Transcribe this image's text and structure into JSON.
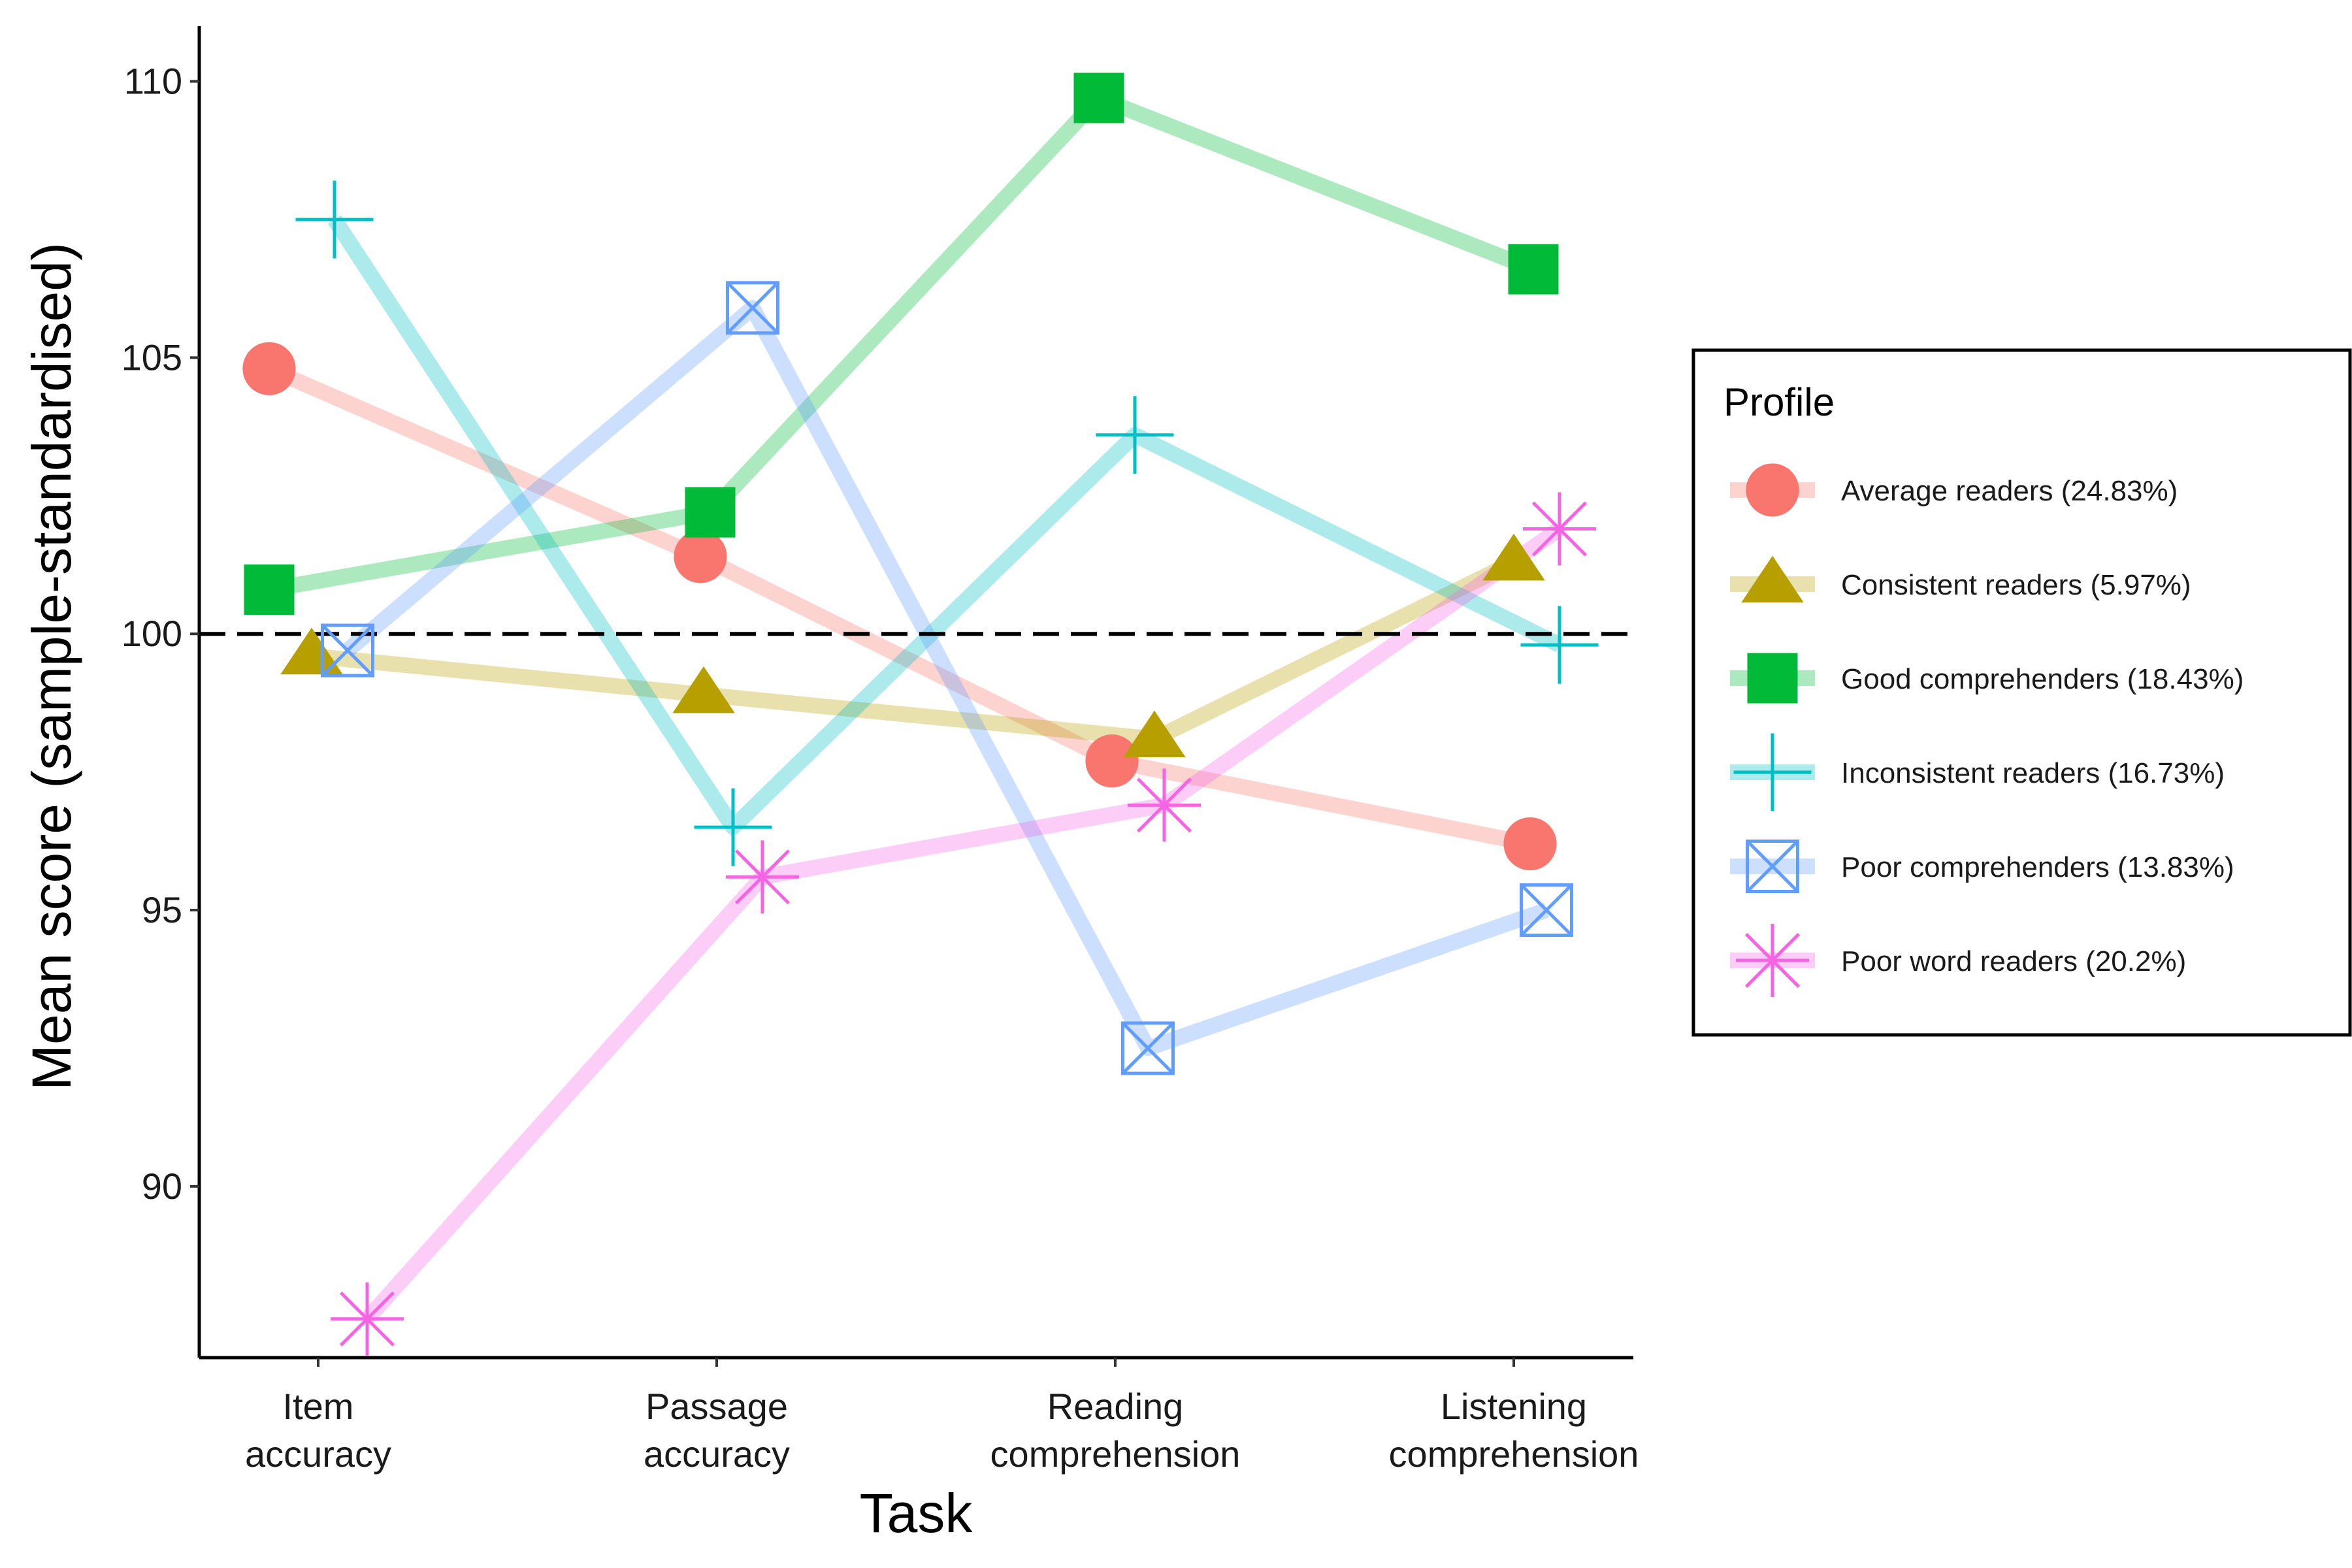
{
  "chart_data": {
    "type": "line",
    "xlabel": "Task",
    "ylabel": "Mean score (sample-standardised)",
    "categories": [
      [
        "Item",
        "accuracy"
      ],
      [
        "Passage",
        "accuracy"
      ],
      [
        "Reading",
        "comprehension"
      ],
      [
        "Listening",
        "comprehension"
      ]
    ],
    "ylim": [
      86.9,
      111.0
    ],
    "yticks": [
      90,
      95,
      100,
      105,
      110
    ],
    "reference_line": 100,
    "grid": false,
    "legend": {
      "title": "Profile",
      "position": "right"
    },
    "series": [
      {
        "name": "Average readers (24.83%)",
        "color": "#F8766D",
        "marker": "circle",
        "values": [
          104.8,
          101.4,
          97.7,
          96.2
        ]
      },
      {
        "name": "Consistent readers (5.97%)",
        "color": "#B79F00",
        "marker": "triangle",
        "values": [
          99.6,
          98.9,
          98.1,
          101.3
        ]
      },
      {
        "name": "Good comprehenders (18.43%)",
        "color": "#00BA38",
        "marker": "square",
        "values": [
          100.8,
          102.2,
          109.7,
          106.6
        ]
      },
      {
        "name": "Inconsistent readers (16.73%)",
        "color": "#00BFC4",
        "marker": "plus",
        "values": [
          107.5,
          96.5,
          103.6,
          99.8
        ]
      },
      {
        "name": "Poor comprehenders (13.83%)",
        "color": "#619CFF",
        "marker": "boxed-x",
        "values": [
          99.7,
          105.9,
          92.5,
          95.0
        ]
      },
      {
        "name": "Poor word readers (20.2%)",
        "color": "#F564E3",
        "marker": "asterisk",
        "values": [
          87.6,
          95.6,
          96.9,
          101.9
        ]
      }
    ]
  }
}
